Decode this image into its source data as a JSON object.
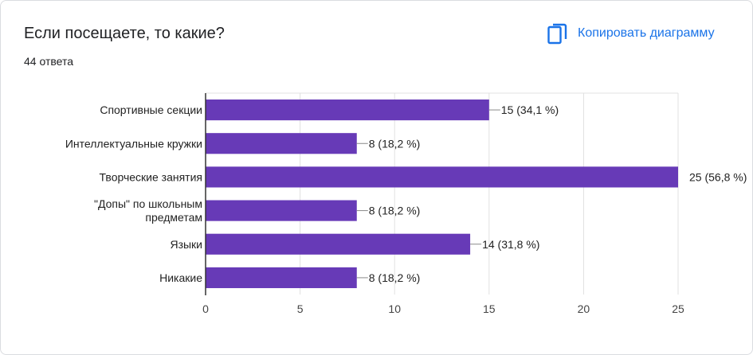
{
  "header": {
    "title": "Если посещаете, то какие?",
    "response_count": "44 ответа",
    "copy_label": "Копировать диаграмму",
    "copy_icon": "copy-icon",
    "accent_color": "#1a73e8"
  },
  "chart_data": {
    "type": "bar",
    "orientation": "horizontal",
    "title": "",
    "xlabel": "",
    "ylabel": "",
    "xlim": [
      0,
      25
    ],
    "x_ticks": [
      0,
      5,
      10,
      15,
      20,
      25
    ],
    "grid": true,
    "legend": "none",
    "bar_color": "#673ab7",
    "categories": [
      [
        "Спортивные секции"
      ],
      [
        "Интеллектуальные кружки"
      ],
      [
        "Творческие занятия"
      ],
      [
        "\"Допы\" по школьным",
        "предметам"
      ],
      [
        "Языки"
      ],
      [
        "Никакие"
      ]
    ],
    "values": [
      15,
      8,
      25,
      8,
      14,
      8
    ],
    "data_labels": [
      "15 (34,1 %)",
      "8 (18,2 %)",
      "25 (56,8 %)",
      "8 (18,2 %)",
      "14 (31,8 %)",
      "8 (18,2 %)"
    ]
  }
}
